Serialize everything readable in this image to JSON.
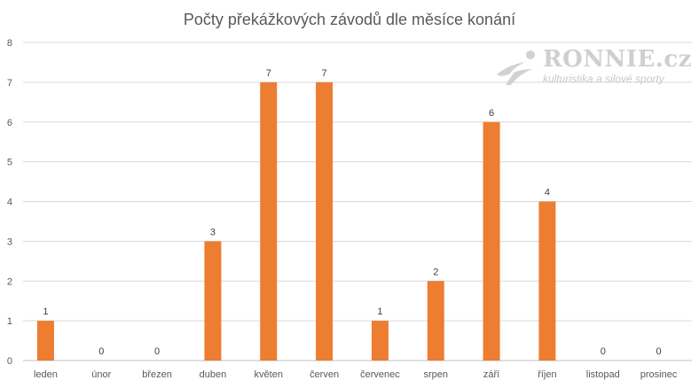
{
  "chart_data": {
    "type": "bar",
    "title": "Počty překážkových závodů dle měsíce konání",
    "xlabel": "",
    "ylabel": "",
    "categories": [
      "leden",
      "únor",
      "březen",
      "duben",
      "květen",
      "červen",
      "červenec",
      "srpen",
      "září",
      "říjen",
      "listopad",
      "prosinec"
    ],
    "series": [
      {
        "values": [
          1,
          0,
          0,
          3,
          7,
          7,
          1,
          2,
          6,
          4,
          0,
          0
        ]
      }
    ],
    "ylim": [
      0,
      8
    ],
    "yticks": [
      0,
      1,
      2,
      3,
      4,
      5,
      6,
      7,
      8
    ],
    "grid": true,
    "legend": "none",
    "data_labels": true,
    "colors": {
      "bar": "#ED7D31",
      "grid": "#D9D9D9",
      "text": "#595959"
    }
  },
  "watermark": {
    "brand": "RONNIE.cz",
    "tagline": "kulturistika a silové sporty"
  }
}
